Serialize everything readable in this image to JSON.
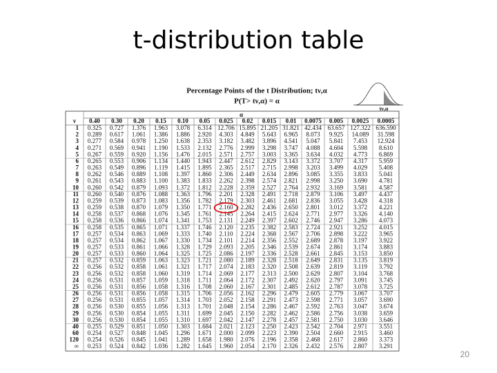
{
  "header": {
    "title": "t-distribution table",
    "page_number": "20"
  },
  "table": {
    "heading": "Percentage Points of the t Distribution; tν,α",
    "subheading": "P(T> tν,α) = α",
    "figure_label": "tν,α",
    "alpha_label": "α",
    "df_label": "v",
    "columns": [
      "0.40",
      "0.30",
      "0.20",
      "0.15",
      "0.10",
      "0.05",
      "0.025",
      "0.02",
      "0.015",
      "0.01",
      "0.0075",
      "0.005",
      "0.0025",
      "0.0005"
    ],
    "rows": [
      {
        "df": "1",
        "values": [
          "0.325",
          "0.727",
          "1.376",
          "1.963",
          "3.078",
          "6.314",
          "12.706",
          "15.895",
          "21.205",
          "31.821",
          "42.434",
          "63.657",
          "127.322",
          "636.590"
        ]
      },
      {
        "df": "2",
        "values": [
          "0.289",
          "0.617",
          "1.061",
          "1.386",
          "1.886",
          "2.920",
          "4.303",
          "4.849",
          "5.643",
          "6.965",
          "8.073",
          "9.925",
          "14.089",
          "31.598"
        ]
      },
      {
        "df": "3",
        "values": [
          "0.277",
          "0.584",
          "0.978",
          "1.250",
          "1.638",
          "2.353",
          "3.182",
          "3.482",
          "3.896",
          "4.541",
          "5.047",
          "5.841",
          "7.453",
          "12.924"
        ]
      },
      {
        "df": "4",
        "values": [
          "0.271",
          "0.569",
          "0.941",
          "1.190",
          "1.533",
          "2.132",
          "2.776",
          "2.999",
          "3.298",
          "3.747",
          "4.088",
          "4.604",
          "5.598",
          "8.610"
        ]
      },
      {
        "df": "5",
        "values": [
          "0.267",
          "0.559",
          "0.920",
          "1.156",
          "1.476",
          "2.015",
          "2.571",
          "2.757",
          "3.003",
          "3.365",
          "3.634",
          "4.032",
          "4.773",
          "6.869"
        ]
      },
      {
        "df": "6",
        "values": [
          "0.265",
          "0.553",
          "0.906",
          "1.134",
          "1.440",
          "1.943",
          "2.447",
          "2.612",
          "2.829",
          "3.143",
          "3.372",
          "3.707",
          "4.317",
          "5.959"
        ]
      },
      {
        "df": "7",
        "values": [
          "0.263",
          "0.549",
          "0.896",
          "1.119",
          "1.415",
          "1.895",
          "2.365",
          "2.517",
          "2.715",
          "2.998",
          "3.203",
          "3.499",
          "4.029",
          "5.408"
        ]
      },
      {
        "df": "8",
        "values": [
          "0.262",
          "0.546",
          "0.889",
          "1.108",
          "1.397",
          "1.860",
          "2.306",
          "2.449",
          "2.634",
          "2.896",
          "3.085",
          "3.355",
          "3.833",
          "5.041"
        ]
      },
      {
        "df": "9",
        "values": [
          "0.261",
          "0.543",
          "0.883",
          "1.100",
          "1.383",
          "1.833",
          "2.262",
          "2.398",
          "2.574",
          "2.821",
          "2.998",
          "3.250",
          "3.690",
          "4.781"
        ]
      },
      {
        "df": "10",
        "values": [
          "0.260",
          "0.542",
          "0.879",
          "1.093",
          "1.372",
          "1.812",
          "2.228",
          "2.359",
          "2.527",
          "2.764",
          "2.932",
          "3.169",
          "3.581",
          "4.587"
        ]
      },
      {
        "df": "11",
        "values": [
          "0.260",
          "0.540",
          "0.876",
          "1.088",
          "1.363",
          "1.796",
          "2.201",
          "2.328",
          "2.491",
          "2.718",
          "2.879",
          "3.106",
          "3.497",
          "4.437"
        ]
      },
      {
        "df": "12",
        "values": [
          "0.259",
          "0.539",
          "0.873",
          "1.083",
          "1.356",
          "1.782",
          "2.179",
          "2.303",
          "2.461",
          "2.681",
          "2.836",
          "3.055",
          "3.428",
          "4.318"
        ]
      },
      {
        "df": "13",
        "values": [
          "0.259",
          "0.538",
          "0.870",
          "1.079",
          "1.350",
          "1.771",
          "2.160",
          "2.282",
          "2.436",
          "2.650",
          "2.801",
          "3.012",
          "3.372",
          "4.221"
        ]
      },
      {
        "df": "14",
        "values": [
          "0.258",
          "0.537",
          "0.868",
          "1.076",
          "1.345",
          "1.761",
          "2.145",
          "2.264",
          "2.415",
          "2.624",
          "2.771",
          "2.977",
          "3.326",
          "4.140"
        ]
      },
      {
        "df": "15",
        "values": [
          "0.258",
          "0.536",
          "0.866",
          "1.074",
          "1.341",
          "1.753",
          "2.131",
          "2.249",
          "2.397",
          "2.602",
          "2.746",
          "2.947",
          "3.286",
          "4.073"
        ]
      },
      {
        "df": "16",
        "values": [
          "0.258",
          "0.535",
          "0.865",
          "1.071",
          "1.337",
          "1.746",
          "2.120",
          "2.235",
          "2.382",
          "2.583",
          "2.724",
          "2.921",
          "3.252",
          "4.015"
        ]
      },
      {
        "df": "17",
        "values": [
          "0.257",
          "0.534",
          "0.863",
          "1.069",
          "1.333",
          "1.740",
          "2.110",
          "2.224",
          "2.368",
          "2.567",
          "2.706",
          "2.898",
          "3.222",
          "3.965"
        ]
      },
      {
        "df": "18",
        "values": [
          "0.257",
          "0.534",
          "0.862",
          "1.067",
          "1.330",
          "1.734",
          "2.101",
          "2.214",
          "2.356",
          "2.552",
          "2.689",
          "2.878",
          "3.197",
          "3.922"
        ]
      },
      {
        "df": "19",
        "values": [
          "0.257",
          "0.533",
          "0.861",
          "1.066",
          "1.328",
          "1.729",
          "2.093",
          "2.205",
          "2.346",
          "2.539",
          "2.674",
          "2.861",
          "3.174",
          "3.883"
        ]
      },
      {
        "df": "20",
        "values": [
          "0.257",
          "0.533",
          "0.860",
          "1.064",
          "1.325",
          "1.725",
          "2.086",
          "2.197",
          "2.336",
          "2.528",
          "2.661",
          "2.845",
          "3.153",
          "3.850"
        ]
      },
      {
        "df": "21",
        "values": [
          "0.257",
          "0.532",
          "0.859",
          "1.063",
          "1.323",
          "1.721",
          "2.080",
          "2.189",
          "2.328",
          "2.518",
          "2.649",
          "2.831",
          "3.135",
          "3.819"
        ]
      },
      {
        "df": "22",
        "values": [
          "0.256",
          "0.532",
          "0.858",
          "1.061",
          "1.321",
          "1.717",
          "2.074",
          "2.183",
          "2.320",
          "2.508",
          "2.639",
          "2.819",
          "3.119",
          "3.792"
        ]
      },
      {
        "df": "23",
        "values": [
          "0.256",
          "0.532",
          "0.858",
          "1.060",
          "1.319",
          "1.714",
          "2.069",
          "2.177",
          "2.313",
          "2.500",
          "2.629",
          "2.807",
          "3.104",
          "3.768"
        ]
      },
      {
        "df": "24",
        "values": [
          "0.256",
          "0.531",
          "0.857",
          "1.059",
          "1.318",
          "1.711",
          "2.064",
          "2.172",
          "2.307",
          "2.492",
          "2.620",
          "2.797",
          "3.091",
          "3.745"
        ]
      },
      {
        "df": "25",
        "values": [
          "0.256",
          "0.531",
          "0.856",
          "1.058",
          "1.316",
          "1.708",
          "2.060",
          "2.167",
          "2.301",
          "2.485",
          "2.612",
          "2.787",
          "3.078",
          "3.725"
        ]
      },
      {
        "df": "26",
        "values": [
          "0.256",
          "0.531",
          "0.856",
          "1.058",
          "1.315",
          "1.706",
          "2.056",
          "2.162",
          "2.296",
          "2.479",
          "2.605",
          "2.779",
          "3.067",
          "3.707"
        ]
      },
      {
        "df": "27",
        "values": [
          "0.256",
          "0.531",
          "0.855",
          "1.057",
          "1.314",
          "1.703",
          "2.052",
          "2.158",
          "2.291",
          "2.473",
          "2.598",
          "2.771",
          "3.057",
          "3.690"
        ]
      },
      {
        "df": "28",
        "values": [
          "0.256",
          "0.530",
          "0.855",
          "1.056",
          "1.313",
          "1.701",
          "2.048",
          "2.154",
          "2.286",
          "2.467",
          "2.592",
          "2.763",
          "3.047",
          "3.674"
        ]
      },
      {
        "df": "29",
        "values": [
          "0.256",
          "0.530",
          "0.854",
          "1.055",
          "1.311",
          "1.699",
          "2.045",
          "2.150",
          "2.282",
          "2.462",
          "2.586",
          "2.756",
          "3.038",
          "3.659"
        ]
      },
      {
        "df": "30",
        "values": [
          "0.256",
          "0.530",
          "0.854",
          "1.055",
          "1.310",
          "1.697",
          "2.042",
          "2.147",
          "2.278",
          "2.457",
          "2.581",
          "2.750",
          "3.030",
          "3.646"
        ]
      },
      {
        "df": "40",
        "values": [
          "0.255",
          "0.529",
          "0.851",
          "1.050",
          "1.303",
          "1.684",
          "2.021",
          "2.123",
          "2.250",
          "2.423",
          "2.542",
          "2.704",
          "2.971",
          "3.551"
        ]
      },
      {
        "df": "60",
        "values": [
          "0.254",
          "0.527",
          "0.848",
          "1.045",
          "1.296",
          "1.671",
          "2.000",
          "2.099",
          "2.223",
          "2.390",
          "2.504",
          "2.660",
          "2.915",
          "3.460"
        ]
      },
      {
        "df": "120",
        "values": [
          "0.254",
          "0.526",
          "0.845",
          "1.041",
          "1.289",
          "1.658",
          "1.980",
          "2.076",
          "2.196",
          "2.358",
          "2.468",
          "2.617",
          "2.860",
          "3.373"
        ]
      },
      {
        "df": "∞",
        "values": [
          "0.253",
          "0.524",
          "0.842",
          "1.036",
          "1.282",
          "1.645",
          "1.960",
          "2.054",
          "2.170",
          "2.326",
          "2.432",
          "2.576",
          "2.807",
          "3.291"
        ]
      }
    ]
  }
}
